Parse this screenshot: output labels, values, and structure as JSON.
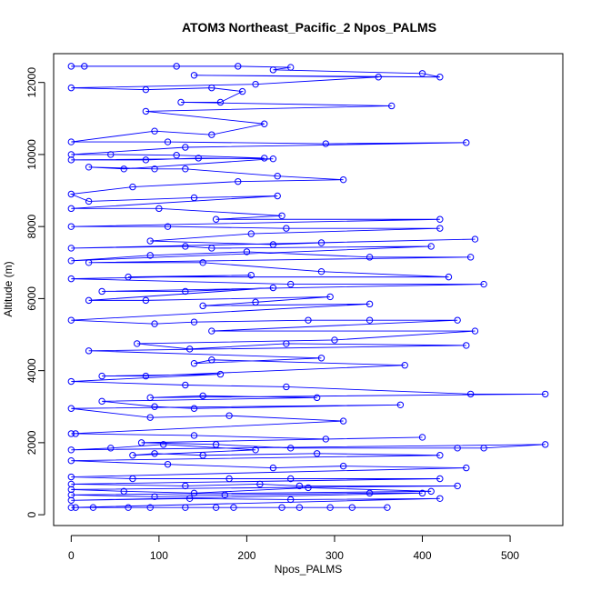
{
  "chart_data": {
    "type": "scatter",
    "title": "ATOM3 Northeast_Pacific_2 Npos_PALMS",
    "xlabel": "Npos_PALMS",
    "ylabel": "Altitude (m)",
    "xlim": [
      -20,
      560
    ],
    "ylim": [
      -300,
      12800
    ],
    "xticks": [
      0,
      100,
      200,
      300,
      400,
      500
    ],
    "yticks": [
      0,
      2000,
      4000,
      6000,
      8000,
      10000,
      12000
    ],
    "grid": false,
    "legend": "none",
    "color": "#0000ff",
    "series": [
      {
        "points": [
          [
            0,
            12450
          ],
          [
            15,
            12450
          ],
          [
            120,
            12450
          ],
          [
            190,
            12450
          ],
          [
            250,
            12420
          ],
          [
            230,
            12350
          ],
          [
            400,
            12250
          ],
          [
            420,
            12150
          ],
          [
            140,
            12200
          ],
          [
            350,
            12150
          ],
          [
            210,
            11950
          ],
          [
            0,
            11850
          ],
          [
            85,
            11800
          ],
          [
            160,
            11850
          ],
          [
            195,
            11750
          ],
          [
            170,
            11450
          ],
          [
            125,
            11450
          ],
          [
            365,
            11350
          ],
          [
            85,
            11200
          ],
          [
            220,
            10850
          ],
          [
            160,
            10550
          ],
          [
            95,
            10650
          ],
          [
            0,
            10350
          ],
          [
            110,
            10350
          ],
          [
            290,
            10300
          ],
          [
            450,
            10330
          ],
          [
            130,
            10200
          ],
          [
            0,
            10000
          ],
          [
            45,
            10000
          ],
          [
            120,
            9980
          ],
          [
            220,
            9900
          ],
          [
            0,
            9850
          ],
          [
            85,
            9850
          ],
          [
            145,
            9900
          ],
          [
            230,
            9880
          ],
          [
            60,
            9600
          ],
          [
            20,
            9650
          ],
          [
            95,
            9600
          ],
          [
            130,
            9600
          ],
          [
            235,
            9400
          ],
          [
            310,
            9300
          ],
          [
            190,
            9250
          ],
          [
            70,
            9100
          ],
          [
            0,
            8900
          ],
          [
            20,
            8700
          ],
          [
            140,
            8800
          ],
          [
            235,
            8850
          ],
          [
            0,
            8500
          ],
          [
            100,
            8500
          ],
          [
            240,
            8300
          ],
          [
            165,
            8200
          ],
          [
            420,
            8200
          ],
          [
            0,
            8000
          ],
          [
            110,
            8000
          ],
          [
            245,
            7950
          ],
          [
            420,
            7950
          ],
          [
            205,
            7800
          ],
          [
            90,
            7600
          ],
          [
            230,
            7500
          ],
          [
            285,
            7550
          ],
          [
            460,
            7650
          ],
          [
            0,
            7400
          ],
          [
            130,
            7450
          ],
          [
            160,
            7400
          ],
          [
            410,
            7450
          ],
          [
            0,
            7050
          ],
          [
            90,
            7200
          ],
          [
            200,
            7300
          ],
          [
            340,
            7150
          ],
          [
            455,
            7150
          ],
          [
            20,
            7000
          ],
          [
            150,
            7000
          ],
          [
            285,
            6750
          ],
          [
            430,
            6600
          ],
          [
            65,
            6600
          ],
          [
            205,
            6650
          ],
          [
            0,
            6550
          ],
          [
            250,
            6400
          ],
          [
            470,
            6400
          ],
          [
            35,
            6200
          ],
          [
            130,
            6200
          ],
          [
            230,
            6300
          ],
          [
            20,
            5950
          ],
          [
            85,
            5950
          ],
          [
            295,
            6050
          ],
          [
            210,
            5900
          ],
          [
            150,
            5800
          ],
          [
            340,
            5850
          ],
          [
            0,
            5400
          ],
          [
            95,
            5300
          ],
          [
            140,
            5350
          ],
          [
            270,
            5400
          ],
          [
            340,
            5400
          ],
          [
            440,
            5400
          ],
          [
            160,
            5100
          ],
          [
            460,
            5100
          ],
          [
            300,
            4850
          ],
          [
            75,
            4750
          ],
          [
            135,
            4600
          ],
          [
            245,
            4750
          ],
          [
            450,
            4700
          ],
          [
            20,
            4550
          ],
          [
            285,
            4350
          ],
          [
            140,
            4200
          ],
          [
            160,
            4300
          ],
          [
            380,
            4150
          ],
          [
            85,
            3850
          ],
          [
            35,
            3850
          ],
          [
            170,
            3900
          ],
          [
            0,
            3700
          ],
          [
            130,
            3600
          ],
          [
            245,
            3550
          ],
          [
            455,
            3350
          ],
          [
            540,
            3350
          ],
          [
            90,
            3250
          ],
          [
            150,
            3300
          ],
          [
            280,
            3250
          ],
          [
            35,
            3150
          ],
          [
            95,
            3000
          ],
          [
            140,
            2950
          ],
          [
            375,
            3050
          ],
          [
            0,
            2950
          ],
          [
            90,
            2700
          ],
          [
            180,
            2750
          ],
          [
            310,
            2600
          ],
          [
            0,
            2250
          ],
          [
            5,
            2250
          ],
          [
            140,
            2200
          ],
          [
            290,
            2100
          ],
          [
            400,
            2150
          ],
          [
            80,
            2000
          ],
          [
            165,
            1950
          ],
          [
            250,
            1850
          ],
          [
            440,
            1850
          ],
          [
            470,
            1850
          ],
          [
            540,
            1950
          ],
          [
            0,
            1800
          ],
          [
            45,
            1850
          ],
          [
            105,
            1950
          ],
          [
            210,
            1800
          ],
          [
            70,
            1650
          ],
          [
            95,
            1700
          ],
          [
            150,
            1650
          ],
          [
            280,
            1700
          ],
          [
            420,
            1650
          ],
          [
            0,
            1500
          ],
          [
            110,
            1400
          ],
          [
            230,
            1300
          ],
          [
            310,
            1350
          ],
          [
            450,
            1300
          ],
          [
            0,
            1050
          ],
          [
            70,
            1000
          ],
          [
            180,
            1000
          ],
          [
            250,
            1000
          ],
          [
            420,
            1000
          ],
          [
            0,
            850
          ],
          [
            130,
            800
          ],
          [
            215,
            850
          ],
          [
            260,
            800
          ],
          [
            440,
            800
          ],
          [
            0,
            700
          ],
          [
            60,
            650
          ],
          [
            140,
            600
          ],
          [
            270,
            750
          ],
          [
            410,
            650
          ],
          [
            0,
            550
          ],
          [
            95,
            500
          ],
          [
            175,
            550
          ],
          [
            340,
            600
          ],
          [
            400,
            600
          ],
          [
            0,
            400
          ],
          [
            135,
            450
          ],
          [
            250,
            420
          ],
          [
            420,
            450
          ],
          [
            0,
            200
          ],
          [
            5,
            200
          ],
          [
            25,
            200
          ],
          [
            65,
            200
          ],
          [
            90,
            200
          ],
          [
            130,
            200
          ],
          [
            165,
            200
          ],
          [
            185,
            200
          ],
          [
            240,
            200
          ],
          [
            260,
            200
          ],
          [
            295,
            200
          ],
          [
            320,
            200
          ],
          [
            360,
            200
          ]
        ]
      }
    ]
  }
}
